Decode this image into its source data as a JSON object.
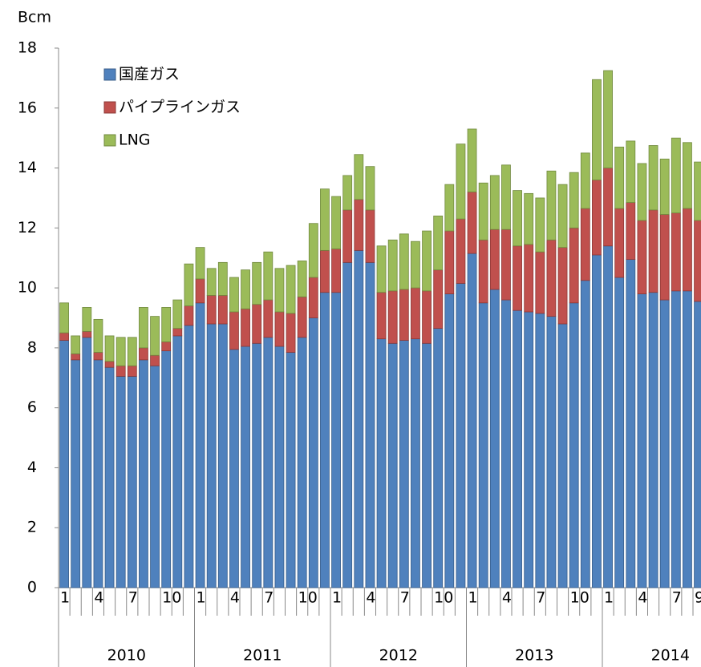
{
  "chart_data": {
    "type": "stacked_bar",
    "y_label": "Bcm",
    "categories": [
      "1",
      null,
      null,
      "4",
      null,
      null,
      "7",
      null,
      null,
      "10",
      null,
      null,
      "1",
      null,
      null,
      "4",
      null,
      null,
      "7",
      null,
      null,
      "10",
      null,
      null,
      "1",
      null,
      null,
      "4",
      null,
      null,
      "7",
      null,
      null,
      "10",
      null,
      null,
      "1",
      null,
      null,
      "4",
      null,
      null,
      "7",
      null,
      null,
      "10",
      null,
      null,
      "1",
      null,
      null,
      "4",
      null,
      null,
      "7",
      null,
      "9"
    ],
    "years": [
      "2010",
      "2011",
      "2012",
      "2013",
      "2014"
    ],
    "series": [
      {
        "name": "国産ガス",
        "color": "#4f81bd",
        "stroke": "#385d8a",
        "values": [
          8.25,
          7.6,
          8.35,
          7.6,
          7.35,
          7.05,
          7.05,
          7.6,
          7.4,
          7.9,
          8.4,
          8.75,
          9.5,
          8.8,
          8.8,
          7.95,
          8.05,
          8.15,
          8.35,
          8.05,
          7.85,
          8.35,
          9.0,
          9.85,
          9.85,
          10.85,
          11.25,
          10.85,
          8.3,
          8.15,
          8.25,
          8.3,
          8.15,
          8.65,
          9.8,
          10.15,
          11.15,
          9.5,
          9.95,
          9.6,
          9.25,
          9.2,
          9.15,
          9.05,
          8.8,
          9.5,
          10.25,
          11.1,
          11.4,
          10.35,
          10.95,
          9.8,
          9.85,
          9.6,
          9.9,
          9.9,
          9.55
        ]
      },
      {
        "name": "パイプラインガス",
        "color": "#c0504d",
        "stroke": "#8c3836",
        "values": [
          0.25,
          0.2,
          0.2,
          0.25,
          0.2,
          0.35,
          0.35,
          0.4,
          0.35,
          0.3,
          0.25,
          0.65,
          0.8,
          0.95,
          0.95,
          1.25,
          1.25,
          1.3,
          1.25,
          1.15,
          1.3,
          1.35,
          1.35,
          1.4,
          1.45,
          1.75,
          1.7,
          1.75,
          1.55,
          1.75,
          1.7,
          1.7,
          1.75,
          1.95,
          2.1,
          2.15,
          2.05,
          2.1,
          2.0,
          2.35,
          2.15,
          2.25,
          2.05,
          2.55,
          2.55,
          2.5,
          2.4,
          2.5,
          2.6,
          2.3,
          1.9,
          2.45,
          2.75,
          2.85,
          2.6,
          2.75,
          2.7
        ]
      },
      {
        "name": "LNG",
        "color": "#9bbb59",
        "stroke": "#71893f",
        "values": [
          1.0,
          0.6,
          0.8,
          1.1,
          0.85,
          0.95,
          0.95,
          1.35,
          1.3,
          1.15,
          0.95,
          1.4,
          1.05,
          0.9,
          1.1,
          1.15,
          1.3,
          1.4,
          1.6,
          1.45,
          1.6,
          1.2,
          1.8,
          2.05,
          1.75,
          1.15,
          1.5,
          1.45,
          1.55,
          1.7,
          1.85,
          1.55,
          2.0,
          1.8,
          1.55,
          2.5,
          2.1,
          1.9,
          1.8,
          2.15,
          1.85,
          1.7,
          1.8,
          2.3,
          2.1,
          1.85,
          1.85,
          3.35,
          3.25,
          2.05,
          2.05,
          1.9,
          2.15,
          1.85,
          2.5,
          2.2,
          1.95
        ]
      }
    ],
    "ylim": [
      0,
      18
    ],
    "yticks": [
      0,
      2,
      4,
      6,
      8,
      10,
      12,
      14,
      16,
      18
    ],
    "legend": "upper left"
  }
}
